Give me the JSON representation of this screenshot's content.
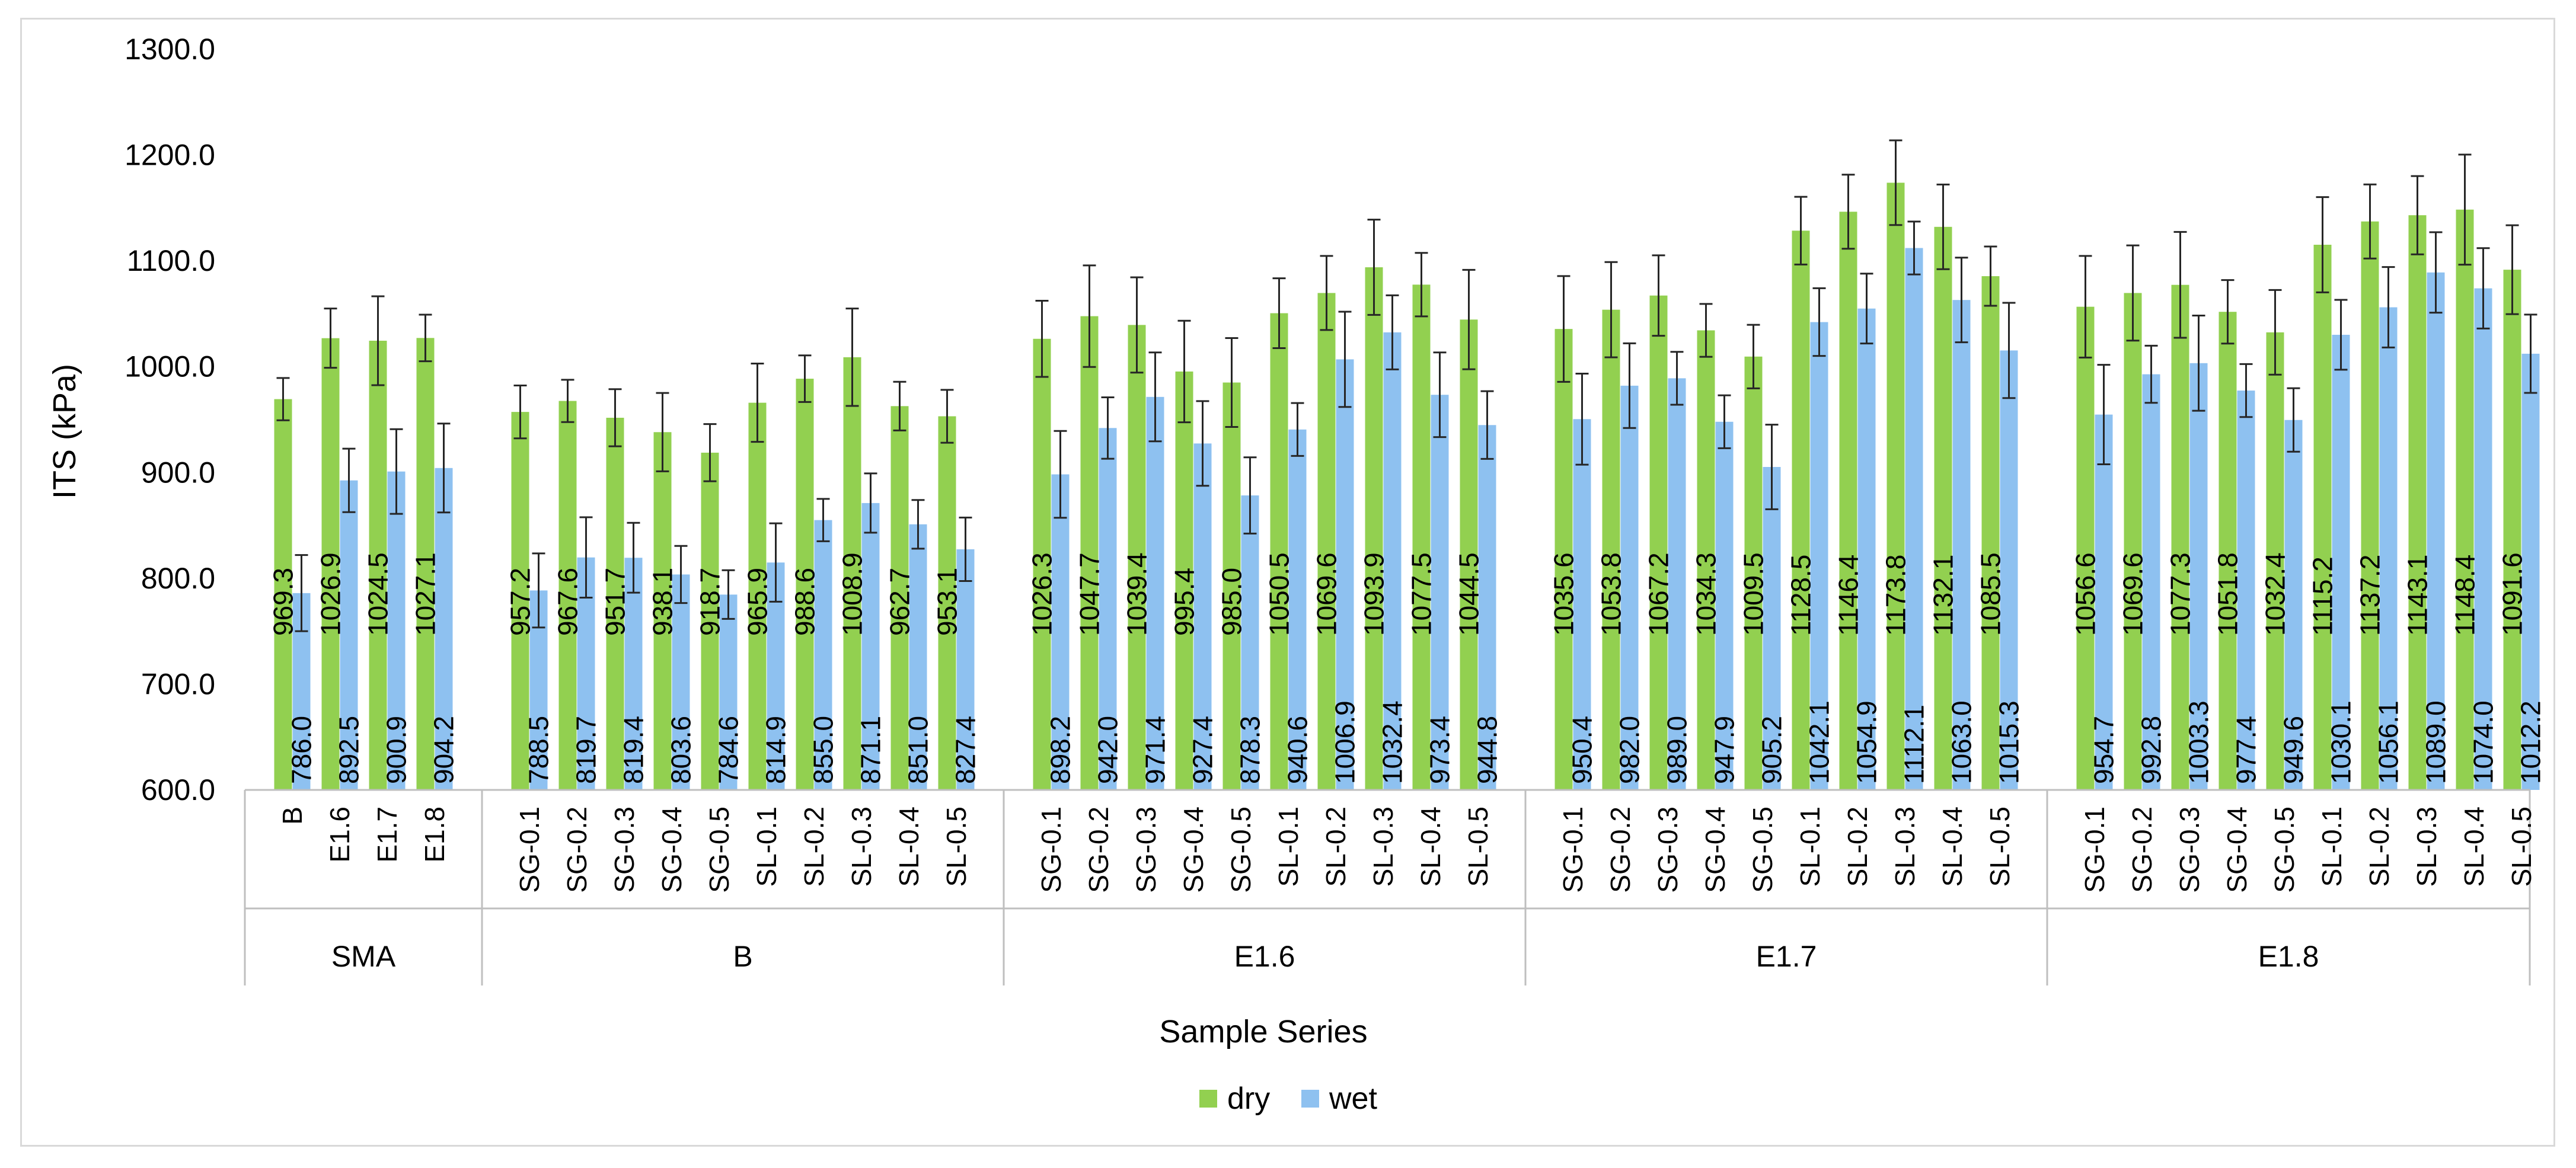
{
  "chart_data": {
    "type": "bar",
    "title": "",
    "xlabel": "Sample Series",
    "ylabel": "ITS (kPa)",
    "ylim": [
      600,
      1300
    ],
    "yticks": [
      "600.0",
      "700.0",
      "800.0",
      "900.0",
      "1000.0",
      "1100.0",
      "1200.0",
      "1300.0"
    ],
    "legend": {
      "placement": "bottom",
      "entries": [
        "dry",
        "wet"
      ]
    },
    "colors": {
      "dry": "#92d050",
      "wet": "#8ec1f0",
      "error_bar": "#262626",
      "axis": "#bfbfbf"
    },
    "groups": [
      {
        "name": "SMA",
        "categories": [
          "B",
          "E1.6",
          "E1.7",
          "E1.8"
        ],
        "dry": [
          969.3,
          1026.9,
          1024.5,
          1027.1
        ],
        "wet": [
          786.0,
          892.5,
          900.9,
          904.2
        ],
        "dry_labels": [
          "969.3",
          "1026.9",
          "1024.5",
          "1027.1"
        ],
        "wet_labels": [
          "786.0",
          "892.5",
          "900.9",
          "904.2"
        ],
        "dry_err": [
          20,
          28,
          42,
          22
        ],
        "wet_err": [
          36,
          30,
          40,
          42
        ]
      },
      {
        "name": "B",
        "categories": [
          "SG-0.1",
          "SG-0.2",
          "SG-0.3",
          "SG-0.4",
          "SG-0.5",
          "SL-0.1",
          "SL-0.2",
          "SL-0.3",
          "SL-0.4",
          "SL-0.5"
        ],
        "dry": [
          957.2,
          967.6,
          951.7,
          938.1,
          918.7,
          965.9,
          988.6,
          1008.9,
          962.7,
          953.1
        ],
        "wet": [
          788.5,
          819.7,
          819.4,
          803.6,
          784.6,
          814.9,
          855.0,
          871.1,
          851.0,
          827.4
        ],
        "dry_labels": [
          "957.2",
          "967.6",
          "951.7",
          "938.1",
          "918.7",
          "965.9",
          "988.6",
          "1008.9",
          "962.7",
          "953.1"
        ],
        "wet_labels": [
          "788.5",
          "819.7",
          "819.4",
          "803.6",
          "784.6",
          "814.9",
          "855.0",
          "871.1",
          "851.0",
          "827.4"
        ],
        "dry_err": [
          25,
          20,
          27,
          37,
          27,
          37,
          22,
          46,
          23,
          25
        ],
        "wet_err": [
          35,
          38,
          33,
          27,
          23,
          37,
          20,
          28,
          23,
          30
        ]
      },
      {
        "name": "E1.6",
        "categories": [
          "SG-0.1",
          "SG-0.2",
          "SG-0.3",
          "SG-0.4",
          "SG-0.5",
          "SL-0.1",
          "SL-0.2",
          "SL-0.3",
          "SL-0.4",
          "SL-0.5"
        ],
        "dry": [
          1026.3,
          1047.7,
          1039.4,
          995.4,
          985.0,
          1050.5,
          1069.6,
          1093.9,
          1077.5,
          1044.5
        ],
        "wet": [
          898.2,
          942.0,
          971.4,
          927.4,
          878.3,
          940.6,
          1006.9,
          1032.4,
          973.4,
          944.8
        ],
        "dry_labels": [
          "1026.3",
          "1047.7",
          "1039.4",
          "995.4",
          "985.0",
          "1050.5",
          "1069.6",
          "1093.9",
          "1077.5",
          "1044.5"
        ],
        "wet_labels": [
          "898.2",
          "942.0",
          "971.4",
          "927.4",
          "878.3",
          "940.6",
          "1006.9",
          "1032.4",
          "973.4",
          "944.8"
        ],
        "dry_err": [
          36,
          48,
          45,
          48,
          42,
          33,
          35,
          45,
          30,
          47
        ],
        "wet_err": [
          41,
          29,
          42,
          40,
          36,
          25,
          45,
          35,
          40,
          32
        ]
      },
      {
        "name": "E1.7",
        "categories": [
          "SG-0.1",
          "SG-0.2",
          "SG-0.3",
          "SG-0.4",
          "SG-0.5",
          "SL-0.1",
          "SL-0.2",
          "SL-0.3",
          "SL-0.4",
          "SL-0.5"
        ],
        "dry": [
          1035.6,
          1053.8,
          1067.2,
          1034.3,
          1009.5,
          1128.5,
          1146.4,
          1173.8,
          1132.1,
          1085.5
        ],
        "wet": [
          950.4,
          982.0,
          989.0,
          947.9,
          905.2,
          1042.1,
          1054.9,
          1112.1,
          1063.0,
          1015.3
        ],
        "dry_labels": [
          "1035.6",
          "1053.8",
          "1067.2",
          "1034.3",
          "1009.5",
          "1128.5",
          "1146.4",
          "1173.8",
          "1132.1",
          "1085.5"
        ],
        "wet_labels": [
          "950.4",
          "982.0",
          "989.0",
          "947.9",
          "905.2",
          "1042.1",
          "1054.9",
          "1112.1",
          "1063.0",
          "1015.3"
        ],
        "dry_err": [
          50,
          45,
          38,
          25,
          30,
          32,
          35,
          40,
          40,
          28
        ],
        "wet_err": [
          43,
          40,
          25,
          25,
          40,
          32,
          33,
          25,
          40,
          45
        ]
      },
      {
        "name": "E1.8",
        "categories": [
          "SG-0.1",
          "SG-0.2",
          "SG-0.3",
          "SG-0.4",
          "SG-0.5",
          "SL-0.1",
          "SL-0.2",
          "SL-0.3",
          "SL-0.4",
          "SL-0.5"
        ],
        "dry": [
          1056.6,
          1069.6,
          1077.3,
          1051.8,
          1032.4,
          1115.2,
          1137.2,
          1143.1,
          1148.4,
          1091.6
        ],
        "wet": [
          954.7,
          992.8,
          1003.3,
          977.4,
          949.6,
          1030.1,
          1056.1,
          1089.0,
          1074.0,
          1012.2
        ],
        "dry_labels": [
          "1056.6",
          "1069.6",
          "1077.3",
          "1051.8",
          "1032.4",
          "1115.2",
          "1137.2",
          "1143.1",
          "1148.4",
          "1091.6"
        ],
        "wet_labels": [
          "954.7",
          "992.8",
          "1003.3",
          "977.4",
          "949.6",
          "1030.1",
          "1056.1",
          "1089.0",
          "1074.0",
          "1012.2"
        ],
        "dry_err": [
          48,
          45,
          50,
          30,
          40,
          45,
          35,
          37,
          52,
          42
        ],
        "wet_err": [
          47,
          27,
          45,
          25,
          30,
          33,
          38,
          38,
          38,
          37
        ]
      }
    ]
  }
}
